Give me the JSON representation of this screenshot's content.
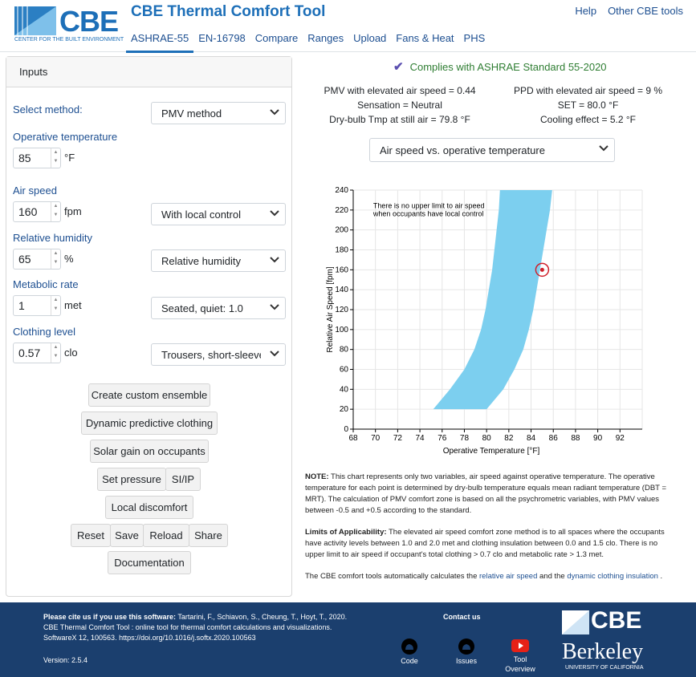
{
  "header": {
    "logo_text": "CBE",
    "logo_subtitle": "CENTER FOR THE BUILT ENVIRONMENT",
    "app_title": "CBE Thermal Comfort Tool",
    "tabs": [
      "ASHRAE-55",
      "EN-16798",
      "Compare",
      "Ranges",
      "Upload",
      "Fans & Heat",
      "PHS"
    ],
    "active_tab": "ASHRAE-55",
    "links": [
      "Help",
      "Other CBE tools"
    ]
  },
  "inputs": {
    "title": "Inputs",
    "select_method_label": "Select method:",
    "method_value": "PMV method",
    "operative_temperature": {
      "label": "Operative temperature",
      "value": "85",
      "unit": "°F"
    },
    "air_speed": {
      "label": "Air speed",
      "value": "160",
      "unit": "fpm",
      "control": "With local control"
    },
    "relative_humidity": {
      "label": "Relative humidity",
      "value": "65",
      "unit": "%",
      "mode": "Relative humidity"
    },
    "metabolic_rate": {
      "label": "Metabolic rate",
      "value": "1",
      "unit": "met",
      "activity": "Seated, quiet: 1.0"
    },
    "clothing_level": {
      "label": "Clothing level",
      "value": "0.57",
      "unit": "clo",
      "ensemble": "Trousers, short-sleeve s"
    },
    "buttons": {
      "custom_ensemble": "Create custom ensemble",
      "dynamic_clothing": "Dynamic predictive clothing",
      "solar_gain": "Solar gain on occupants",
      "set_pressure": "Set pressure",
      "si_ip": "SI/IP",
      "local_discomfort": "Local discomfort",
      "reset": "Reset",
      "save": "Save",
      "reload": "Reload",
      "share": "Share",
      "documentation": "Documentation"
    }
  },
  "results": {
    "complies": "Complies with ASHRAE Standard 55-2020",
    "pmv": "PMV with elevated air speed = 0.44",
    "ppd": "PPD with elevated air speed = 9 %",
    "sensation": "Sensation = Neutral",
    "set": "SET = 80.0 °F",
    "dry_bulb": "Dry-bulb Tmp at still air = 79.8 °F",
    "cooling_effect": "Cooling effect = 5.2 °F",
    "chart_select": "Air speed vs. operative temperature"
  },
  "chart_data": {
    "type": "area",
    "xlabel": "Operative Temperature [°F]",
    "ylabel": "Relative Air Speed [fpm]",
    "xlim": [
      68,
      94
    ],
    "ylim": [
      0,
      240
    ],
    "xticks": [
      68,
      70,
      72,
      74,
      76,
      78,
      80,
      82,
      84,
      86,
      88,
      90,
      92
    ],
    "yticks": [
      0,
      20,
      40,
      60,
      80,
      100,
      120,
      140,
      160,
      180,
      200,
      220,
      240
    ],
    "annotation": [
      "There is no upper limit to air speed",
      "when occupants have local control"
    ],
    "comfort_zone": [
      [
        75.2,
        20
      ],
      [
        76.7,
        40
      ],
      [
        78.0,
        60
      ],
      [
        78.9,
        80
      ],
      [
        79.5,
        100
      ],
      [
        79.9,
        120
      ],
      [
        80.2,
        140
      ],
      [
        80.5,
        160
      ],
      [
        80.7,
        180
      ],
      [
        80.9,
        200
      ],
      [
        81.1,
        220
      ],
      [
        81.2,
        240
      ],
      [
        85.9,
        240
      ],
      [
        85.7,
        220
      ],
      [
        85.4,
        200
      ],
      [
        85.1,
        180
      ],
      [
        84.8,
        160
      ],
      [
        84.5,
        140
      ],
      [
        84.2,
        120
      ],
      [
        83.8,
        100
      ],
      [
        83.3,
        80
      ],
      [
        82.5,
        60
      ],
      [
        81.5,
        40
      ],
      [
        80.0,
        20
      ]
    ],
    "current_point": {
      "x": 85,
      "y": 160
    },
    "zone_color": "#7ccfef",
    "point_color": "#d0202a",
    "grid": true
  },
  "notes": {
    "note_label": "NOTE:",
    "note_text": "This chart represents only two variables, air speed against operative temperature. The operative temperature for each point is determined by dry-bulb temperature equals mean radiant temperature (DBT = MRT). The calculation of PMV comfort zone is based on all the psychrometric variables, with PMV values between -0.5 and +0.5 according to the standard.",
    "limits_label": "Limits of Applicability:",
    "limits_text": "The elevated air speed comfort zone method is to all spaces where the occupants have activity levels between 1.0 and 2.0 met and clothing insulation between 0.0 and 1.5 clo. There is no upper limit to air speed if occupant's total clothing > 0.7 clo and metabolic rate > 1.3 met.",
    "auto_text_1": "The CBE comfort tools automatically calculates the",
    "auto_link_1": "relative air speed",
    "auto_text_2": "and the",
    "auto_link_2": "dynamic clothing insulation",
    "auto_text_3": "."
  },
  "footer": {
    "cite_label": "Please cite us if you use this software:",
    "cite_authors": "Tartarini, F., Schiavon, S., Cheung, T., Hoyt, T., 2020.",
    "cite_line2": "CBE Thermal Comfort Tool : online tool for thermal comfort calculations and visualizations.",
    "cite_line3": "SoftwareX 12, 100563. https://doi.org/10.1016/j.softx.2020.100563",
    "version": "Version: 2.5.4",
    "contact": "Contact us",
    "code": "Code",
    "issues": "Issues",
    "tool_overview_1": "Tool",
    "tool_overview_2": "Overview",
    "brand_cbe": "CBE",
    "brand_berkeley": "Berkeley",
    "brand_uc": "UNIVERSITY OF CALIFORNIA"
  }
}
